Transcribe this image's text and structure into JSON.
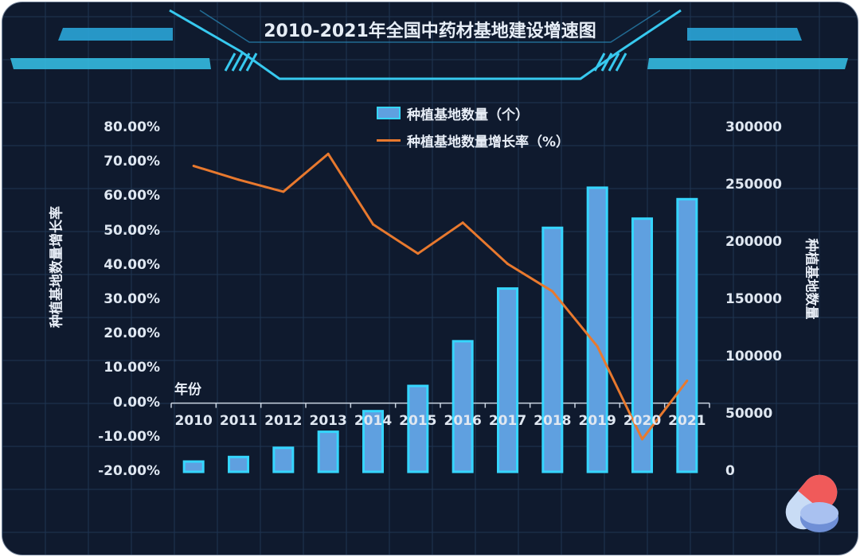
{
  "chart_data": {
    "type": "bar+line",
    "title": "2010-2021年全国中药材基地建设增速图",
    "xlabel": "年份",
    "ylabel_left": "种植基地数量增长率",
    "ylabel_right": "种植基地数量",
    "categories": [
      "2010",
      "2011",
      "2012",
      "2013",
      "2014",
      "2015",
      "2016",
      "2017",
      "2018",
      "2019",
      "2020",
      "2021"
    ],
    "series": [
      {
        "name": "种植基地数量（个）",
        "type": "bar",
        "axis": "right",
        "values": [
          9000,
          13000,
          21000,
          35000,
          53000,
          75000,
          114000,
          160000,
          213000,
          248000,
          221000,
          238000
        ]
      },
      {
        "name": "种植基地数量增长率（%）",
        "type": "line",
        "axis": "left",
        "values": [
          69.0,
          65.0,
          61.5,
          72.5,
          52.0,
          43.5,
          52.5,
          40.5,
          32.5,
          16.5,
          -10.5,
          6.5
        ]
      }
    ],
    "ylim_left": [
      -20,
      80
    ],
    "ylim_right": [
      0,
      300000
    ],
    "left_ticks": [
      "80.00%",
      "70.00%",
      "60.00%",
      "50.00%",
      "40.00%",
      "30.00%",
      "20.00%",
      "10.00%",
      "0.00%",
      "-10.00%",
      "-20.00%"
    ],
    "right_ticks": [
      "300000",
      "250000",
      "200000",
      "150000",
      "100000",
      "50000",
      "0"
    ],
    "legend_position": "top-center",
    "colors": {
      "bar_fill": "#5fa0e0",
      "bar_stroke": "#35d6ff",
      "line": "#e8792e",
      "background": "#0f1a2e",
      "grid": "#1f3552"
    }
  }
}
